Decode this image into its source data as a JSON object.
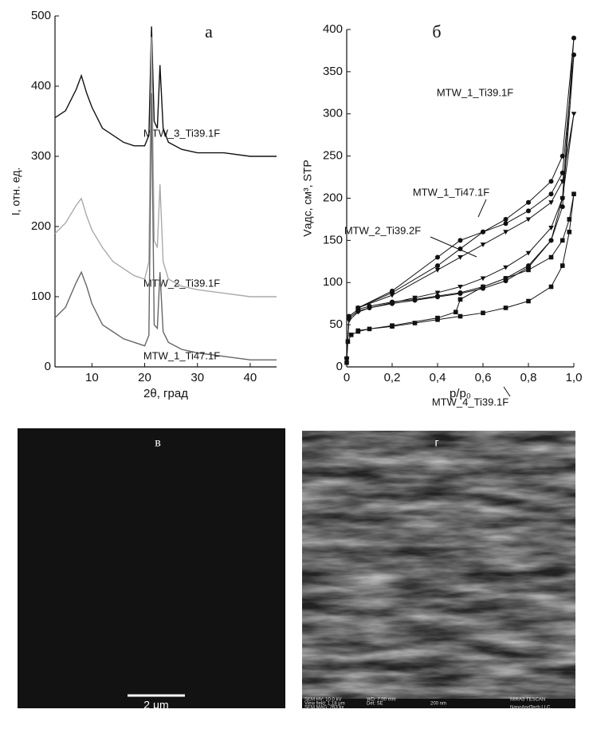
{
  "chart_data": [
    {
      "type": "line",
      "title": "а",
      "xlabel": "2θ, град",
      "ylabel": "I, отн. ед.",
      "xlim": [
        3,
        45
      ],
      "xticks": [
        10,
        20,
        30,
        40
      ],
      "ylim": [
        0,
        500
      ],
      "yticks": [
        0,
        100,
        200,
        300,
        400,
        500
      ],
      "x": [
        3,
        5,
        7,
        8,
        9,
        10,
        12,
        14,
        16,
        18,
        20,
        20.8,
        21.3,
        21.8,
        22.4,
        22.9,
        23.5,
        24.5,
        27,
        30,
        35,
        40,
        45
      ],
      "series": [
        {
          "name": "MTW_3_Ti39.1F",
          "color": "#111111",
          "values": [
            355,
            365,
            395,
            415,
            390,
            370,
            340,
            330,
            320,
            315,
            315,
            330,
            485,
            350,
            340,
            430,
            340,
            320,
            310,
            305,
            305,
            300,
            300
          ]
        },
        {
          "name": "MTW_2_Ti39.1F",
          "color": "#aaaaaa",
          "values": [
            190,
            205,
            230,
            240,
            215,
            195,
            170,
            150,
            140,
            130,
            125,
            150,
            470,
            180,
            170,
            260,
            150,
            125,
            115,
            110,
            105,
            100,
            100
          ]
        },
        {
          "name": "MTW_1_Ti47.1F",
          "color": "#666666",
          "values": [
            70,
            85,
            120,
            135,
            115,
            90,
            60,
            50,
            40,
            35,
            30,
            45,
            390,
            60,
            55,
            135,
            50,
            35,
            25,
            20,
            15,
            10,
            10
          ]
        }
      ]
    },
    {
      "type": "line",
      "title": "б",
      "xlabel": "p/p₀",
      "ylabel": "Vадс, см³, STP",
      "xlim": [
        0,
        1
      ],
      "xticks": [
        0,
        {
          "value": 0.2,
          "label": "0,2"
        },
        {
          "value": 0.4,
          "label": "0,4"
        },
        {
          "value": 0.6,
          "label": "0,6"
        },
        {
          "value": 0.8,
          "label": "0,8"
        },
        {
          "value": 1,
          "label": "1,0"
        }
      ],
      "ylim": [
        0,
        400
      ],
      "yticks": [
        0,
        50,
        100,
        150,
        200,
        250,
        300,
        350,
        400
      ],
      "series": [
        {
          "name": "MTW_1_Ti39.1F",
          "color": "#111111",
          "marker": "circle",
          "x": [
            0,
            0.01,
            0.05,
            0.1,
            0.2,
            0.3,
            0.4,
            0.5,
            0.6,
            0.7,
            0.8,
            0.9,
            0.95,
            1.0,
            0.95,
            0.9,
            0.8,
            0.7,
            0.6,
            0.5,
            0.4,
            0.2,
            0.05
          ],
          "values": [
            10,
            58,
            66,
            70,
            75,
            79,
            83,
            87,
            93,
            102,
            118,
            150,
            200,
            390,
            250,
            220,
            195,
            175,
            160,
            140,
            120,
            88,
            70
          ]
        },
        {
          "name": "MTW_1_Ti47.1F",
          "color": "#111111",
          "marker": "circle",
          "x": [
            0,
            0.01,
            0.05,
            0.1,
            0.2,
            0.3,
            0.4,
            0.5,
            0.6,
            0.7,
            0.8,
            0.9,
            0.95,
            1.0,
            0.95,
            0.9,
            0.8,
            0.7,
            0.6,
            0.5,
            0.4,
            0.2,
            0.05
          ],
          "values": [
            10,
            60,
            68,
            72,
            77,
            80,
            84,
            88,
            95,
            105,
            120,
            150,
            190,
            370,
            230,
            205,
            185,
            170,
            160,
            150,
            130,
            90,
            70
          ]
        },
        {
          "name": "MTW_2_Ti39.2F",
          "color": "#111111",
          "marker": "triangle",
          "x": [
            0,
            0.01,
            0.05,
            0.1,
            0.2,
            0.3,
            0.4,
            0.5,
            0.6,
            0.7,
            0.8,
            0.9,
            0.95,
            1.0,
            0.95,
            0.9,
            0.8,
            0.7,
            0.6,
            0.5,
            0.4,
            0.2,
            0.05
          ],
          "values": [
            10,
            55,
            65,
            70,
            76,
            82,
            88,
            95,
            105,
            118,
            135,
            165,
            200,
            300,
            220,
            195,
            175,
            160,
            145,
            130,
            115,
            85,
            70
          ]
        },
        {
          "name": "MTW_4_Ti39.1F",
          "color": "#111111",
          "marker": "square",
          "x": [
            0,
            0.005,
            0.02,
            0.05,
            0.1,
            0.2,
            0.3,
            0.4,
            0.5,
            0.6,
            0.7,
            0.8,
            0.9,
            0.95,
            0.98,
            1.0,
            0.98,
            0.95,
            0.9,
            0.8,
            0.7,
            0.6,
            0.5,
            0.48,
            0.4,
            0.2,
            0.05
          ],
          "values": [
            5,
            30,
            38,
            42,
            45,
            48,
            52,
            56,
            60,
            64,
            70,
            78,
            95,
            120,
            160,
            205,
            175,
            150,
            130,
            115,
            105,
            95,
            80,
            65,
            58,
            49,
            43
          ]
        }
      ]
    }
  ],
  "images": [
    {
      "label": "в",
      "scale_bar": "2 μm"
    },
    {
      "label": "г",
      "info_bar": [
        "SEM HV: 10.0 kV",
        "WD: 7.00 mm",
        "MIRA3 TESCAN",
        "View field: 1.18 μm",
        "Det: SE",
        "200 nm",
        "SEM MAG: 263 kx",
        "NanoAndTech LLC"
      ]
    }
  ]
}
